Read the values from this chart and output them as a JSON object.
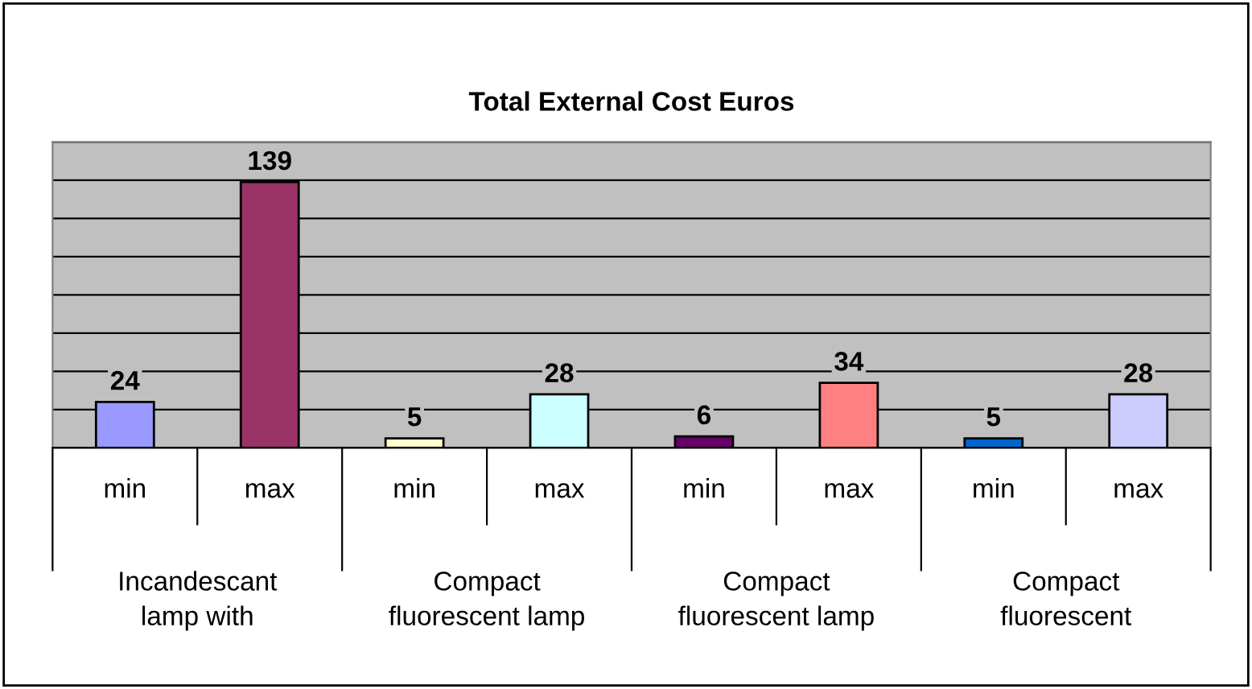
{
  "chart_data": {
    "type": "bar",
    "title": "Total External Cost Euros",
    "categories": [
      "min",
      "max",
      "min",
      "max",
      "min",
      "max",
      "min",
      "max"
    ],
    "values": [
      24,
      139,
      5,
      28,
      6,
      34,
      5,
      28
    ],
    "colors": [
      "#9999ff",
      "#993366",
      "#ffffcc",
      "#ccffff",
      "#660066",
      "#ff8080",
      "#0066cc",
      "#ccccff"
    ],
    "data_labels": true,
    "ylim": [
      0,
      160
    ],
    "yticks": [
      {
        "value": 0,
        "label": null
      },
      {
        "value": 20,
        "label": null
      },
      {
        "value": 40,
        "label": null
      },
      {
        "value": 60,
        "label": null
      },
      {
        "value": 80,
        "label": null
      },
      {
        "value": 100,
        "label": null
      },
      {
        "value": 120,
        "label": null
      },
      {
        "value": 140,
        "label": null
      },
      {
        "value": 160,
        "label": null
      }
    ],
    "grid": "y",
    "tick_labels": "x",
    "annotations": [
      "Incandescant\nlamp with",
      "Compact\nfluorescent lamp",
      "Compact\nfluorescent lamp",
      "Compact\nfluorescent"
    ]
  }
}
